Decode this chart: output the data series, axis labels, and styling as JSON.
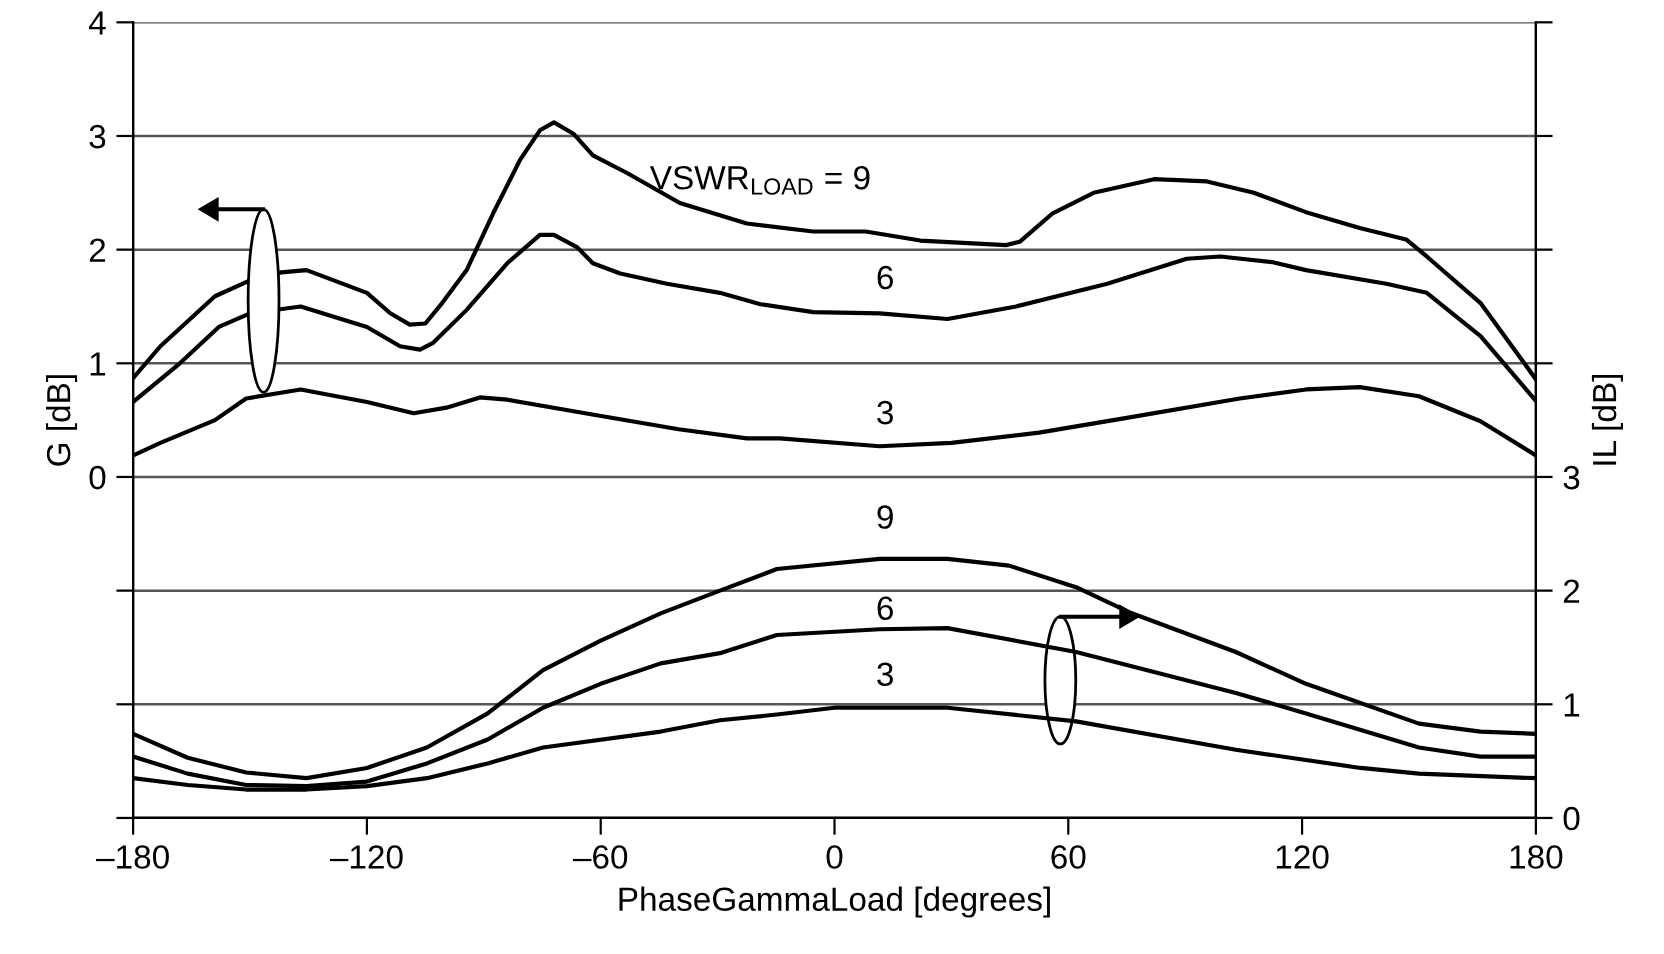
{
  "chart_data": {
    "type": "line",
    "xlabel": "PhaseGammaLoad [degrees]",
    "ylabel": "G [dB]",
    "y2label": "IL [dB]",
    "xlim": [
      -180,
      180
    ],
    "xticks": [
      {
        "value": -180,
        "label": "–180"
      },
      {
        "value": -120,
        "label": "–120"
      },
      {
        "value": -60,
        "label": "–60"
      },
      0,
      60,
      120,
      180
    ],
    "ylim": [
      -3,
      4
    ],
    "yticks": [
      {
        "value": -3,
        "label": null
      },
      {
        "value": -2,
        "label": null
      },
      {
        "value": -1,
        "label": null
      },
      0,
      1,
      2,
      3,
      4
    ],
    "y2lim": [
      0,
      7
    ],
    "y2ticks": [
      0,
      1,
      2,
      3,
      {
        "value": 4,
        "label": null
      },
      {
        "value": 5,
        "label": null
      },
      {
        "value": 6,
        "label": null
      },
      {
        "value": 7,
        "label": null
      }
    ],
    "grid": "y",
    "legend": false,
    "marker": "none",
    "line_style": "solid",
    "series": [
      {
        "name": "VSWR$_{LOAD}$ = 9",
        "color": "#000000",
        "x": [
          -180,
          -173,
          -159,
          -150,
          -142,
          -135.5,
          -120,
          -114,
          -109,
          -105,
          -100.7,
          -94.4,
          -87.6,
          -80.7,
          -75.6,
          -72,
          -67,
          -62,
          -53,
          -39.7,
          -22.5,
          -5.5,
          8,
          22,
          44,
          47.6,
          56,
          66.5,
          82,
          95.6,
          107.6,
          121,
          134.8,
          146.7,
          152,
          165.8,
          180
        ],
        "values": [
          0.87,
          1.15,
          1.59,
          1.73,
          1.8,
          1.82,
          1.62,
          1.44,
          1.34,
          1.35,
          1.53,
          1.82,
          2.32,
          2.79,
          3.05,
          3.12,
          3.02,
          2.83,
          2.67,
          2.41,
          2.23,
          2.16,
          2.16,
          2.08,
          2.04,
          2.07,
          2.32,
          2.5,
          2.62,
          2.6,
          2.5,
          2.33,
          2.19,
          2.09,
          1.94,
          1.53,
          0.86
        ]
      },
      {
        "name": "6",
        "color": "#000000",
        "x": [
          -180,
          -168,
          -158,
          -150,
          -137,
          -120,
          -111.5,
          -106.4,
          -103,
          -94.4,
          -84,
          -75.6,
          -72,
          -66,
          -62,
          -55,
          -43,
          -29.4,
          -19,
          -5.5,
          11.6,
          29,
          46.6,
          70,
          90.4,
          99,
          112.5,
          121,
          141.6,
          152,
          165.8,
          180
        ],
        "values": [
          0.66,
          1.0,
          1.32,
          1.44,
          1.5,
          1.32,
          1.15,
          1.12,
          1.18,
          1.47,
          1.88,
          2.13,
          2.13,
          2.02,
          1.88,
          1.79,
          1.7,
          1.62,
          1.52,
          1.45,
          1.44,
          1.39,
          1.5,
          1.7,
          1.92,
          1.94,
          1.89,
          1.82,
          1.7,
          1.62,
          1.24,
          0.67
        ]
      },
      {
        "name": "3",
        "color": "#000000",
        "x": [
          -180,
          -173,
          -159,
          -151,
          -137,
          -120,
          -108,
          -99.6,
          -91,
          -84,
          -64,
          -40,
          -22.5,
          -14,
          11.6,
          30,
          52.5,
          75,
          104,
          121,
          134.8,
          150,
          165.8,
          180
        ],
        "values": [
          0.19,
          0.3,
          0.5,
          0.69,
          0.77,
          0.66,
          0.56,
          0.61,
          0.7,
          0.68,
          0.56,
          0.42,
          0.34,
          0.34,
          0.27,
          0.3,
          0.39,
          0.52,
          0.69,
          0.77,
          0.79,
          0.71,
          0.49,
          0.19
        ]
      },
      {
        "name": "9",
        "color": "#000000",
        "axis": "y2",
        "x": [
          -180,
          -166,
          -151,
          -135.5,
          -120,
          -104.6,
          -89,
          -74.8,
          -60,
          -44.6,
          -29.4,
          -14.8,
          11.6,
          29,
          44.8,
          62,
          75.6,
          103,
          121,
          150,
          165.8,
          180
        ],
        "values": [
          0.74,
          0.53,
          0.4,
          0.35,
          0.44,
          0.62,
          0.92,
          1.3,
          1.56,
          1.8,
          2.0,
          2.19,
          2.28,
          2.28,
          2.22,
          2.03,
          1.81,
          1.46,
          1.18,
          0.83,
          0.76,
          0.74
        ]
      },
      {
        "name": "6",
        "color": "#000000",
        "axis": "y2",
        "x": [
          -180,
          -166,
          -151,
          -135.5,
          -120,
          -104.6,
          -89,
          -74.8,
          -60,
          -44.6,
          -29.4,
          -14.8,
          11.6,
          29,
          62,
          103,
          121,
          150,
          165.8,
          180
        ],
        "values": [
          0.54,
          0.39,
          0.29,
          0.28,
          0.32,
          0.48,
          0.69,
          0.97,
          1.18,
          1.36,
          1.45,
          1.61,
          1.66,
          1.67,
          1.46,
          1.1,
          0.92,
          0.62,
          0.54,
          0.54
        ]
      },
      {
        "name": "3",
        "color": "#000000",
        "axis": "y2",
        "x": [
          -180,
          -166,
          -151,
          -135.5,
          -120,
          -104.6,
          -89,
          -74.8,
          -44.6,
          -29.4,
          -14.8,
          0,
          29,
          62,
          103,
          135,
          150,
          180
        ],
        "values": [
          0.35,
          0.29,
          0.25,
          0.25,
          0.28,
          0.35,
          0.48,
          0.62,
          0.76,
          0.86,
          0.91,
          0.97,
          0.97,
          0.85,
          0.6,
          0.44,
          0.39,
          0.35
        ]
      }
    ]
  }
}
